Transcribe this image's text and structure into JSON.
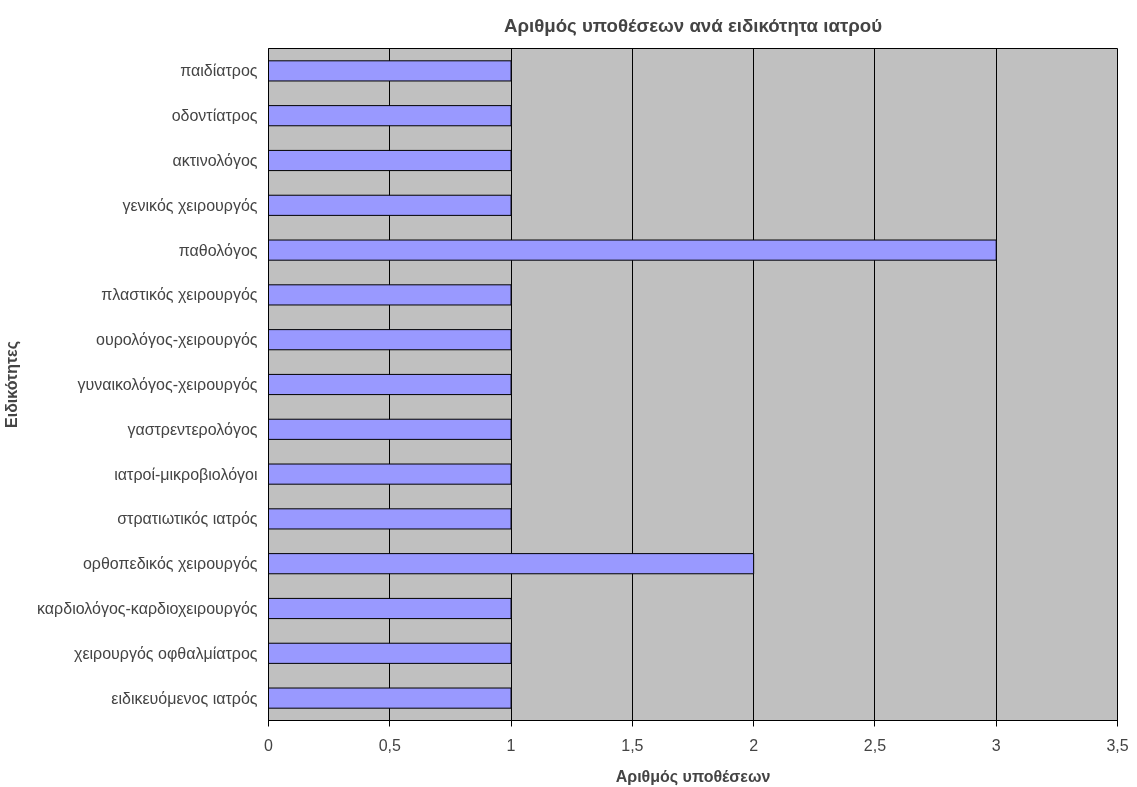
{
  "chart_data": {
    "type": "bar",
    "orientation": "horizontal",
    "title": "Αριθμός υποθέσεων ανά ειδικότητα ιατρού",
    "xlabel": "Αριθμός υποθέσεων",
    "ylabel": "Ειδικότητες",
    "categories": [
      "παιδίατρος",
      "οδοντίατρος",
      "ακτινολόγος",
      "γενικός χειρουργός",
      "παθολόγος",
      "πλαστικός χειρουργός",
      "ουρολόγος-χειρουργός",
      "γυναικολόγος-χειρουργός",
      "γαστρεντερολόγος",
      "ιατροί-μικροβιολόγοι",
      "στρατιωτικός ιατρός",
      "ορθοπεδικός χειρουργός",
      "καρδιολόγος-καρδιοχειρουργός",
      "χειρουργός οφθαλμίατρος",
      "ειδικευόμενος ιατρός"
    ],
    "values": [
      1,
      1,
      1,
      1,
      3,
      1,
      1,
      1,
      1,
      1,
      1,
      2,
      1,
      1,
      1
    ],
    "color": "#9999ff",
    "xlim": [
      0,
      3.5
    ],
    "xticks": [
      0,
      {
        "value": 0.5,
        "label": "0,5"
      },
      1,
      {
        "value": 1.5,
        "label": "1,5"
      },
      2,
      {
        "value": 2.5,
        "label": "2,5"
      },
      3,
      {
        "value": 3.5,
        "label": "3,5"
      }
    ],
    "grid": "x"
  }
}
